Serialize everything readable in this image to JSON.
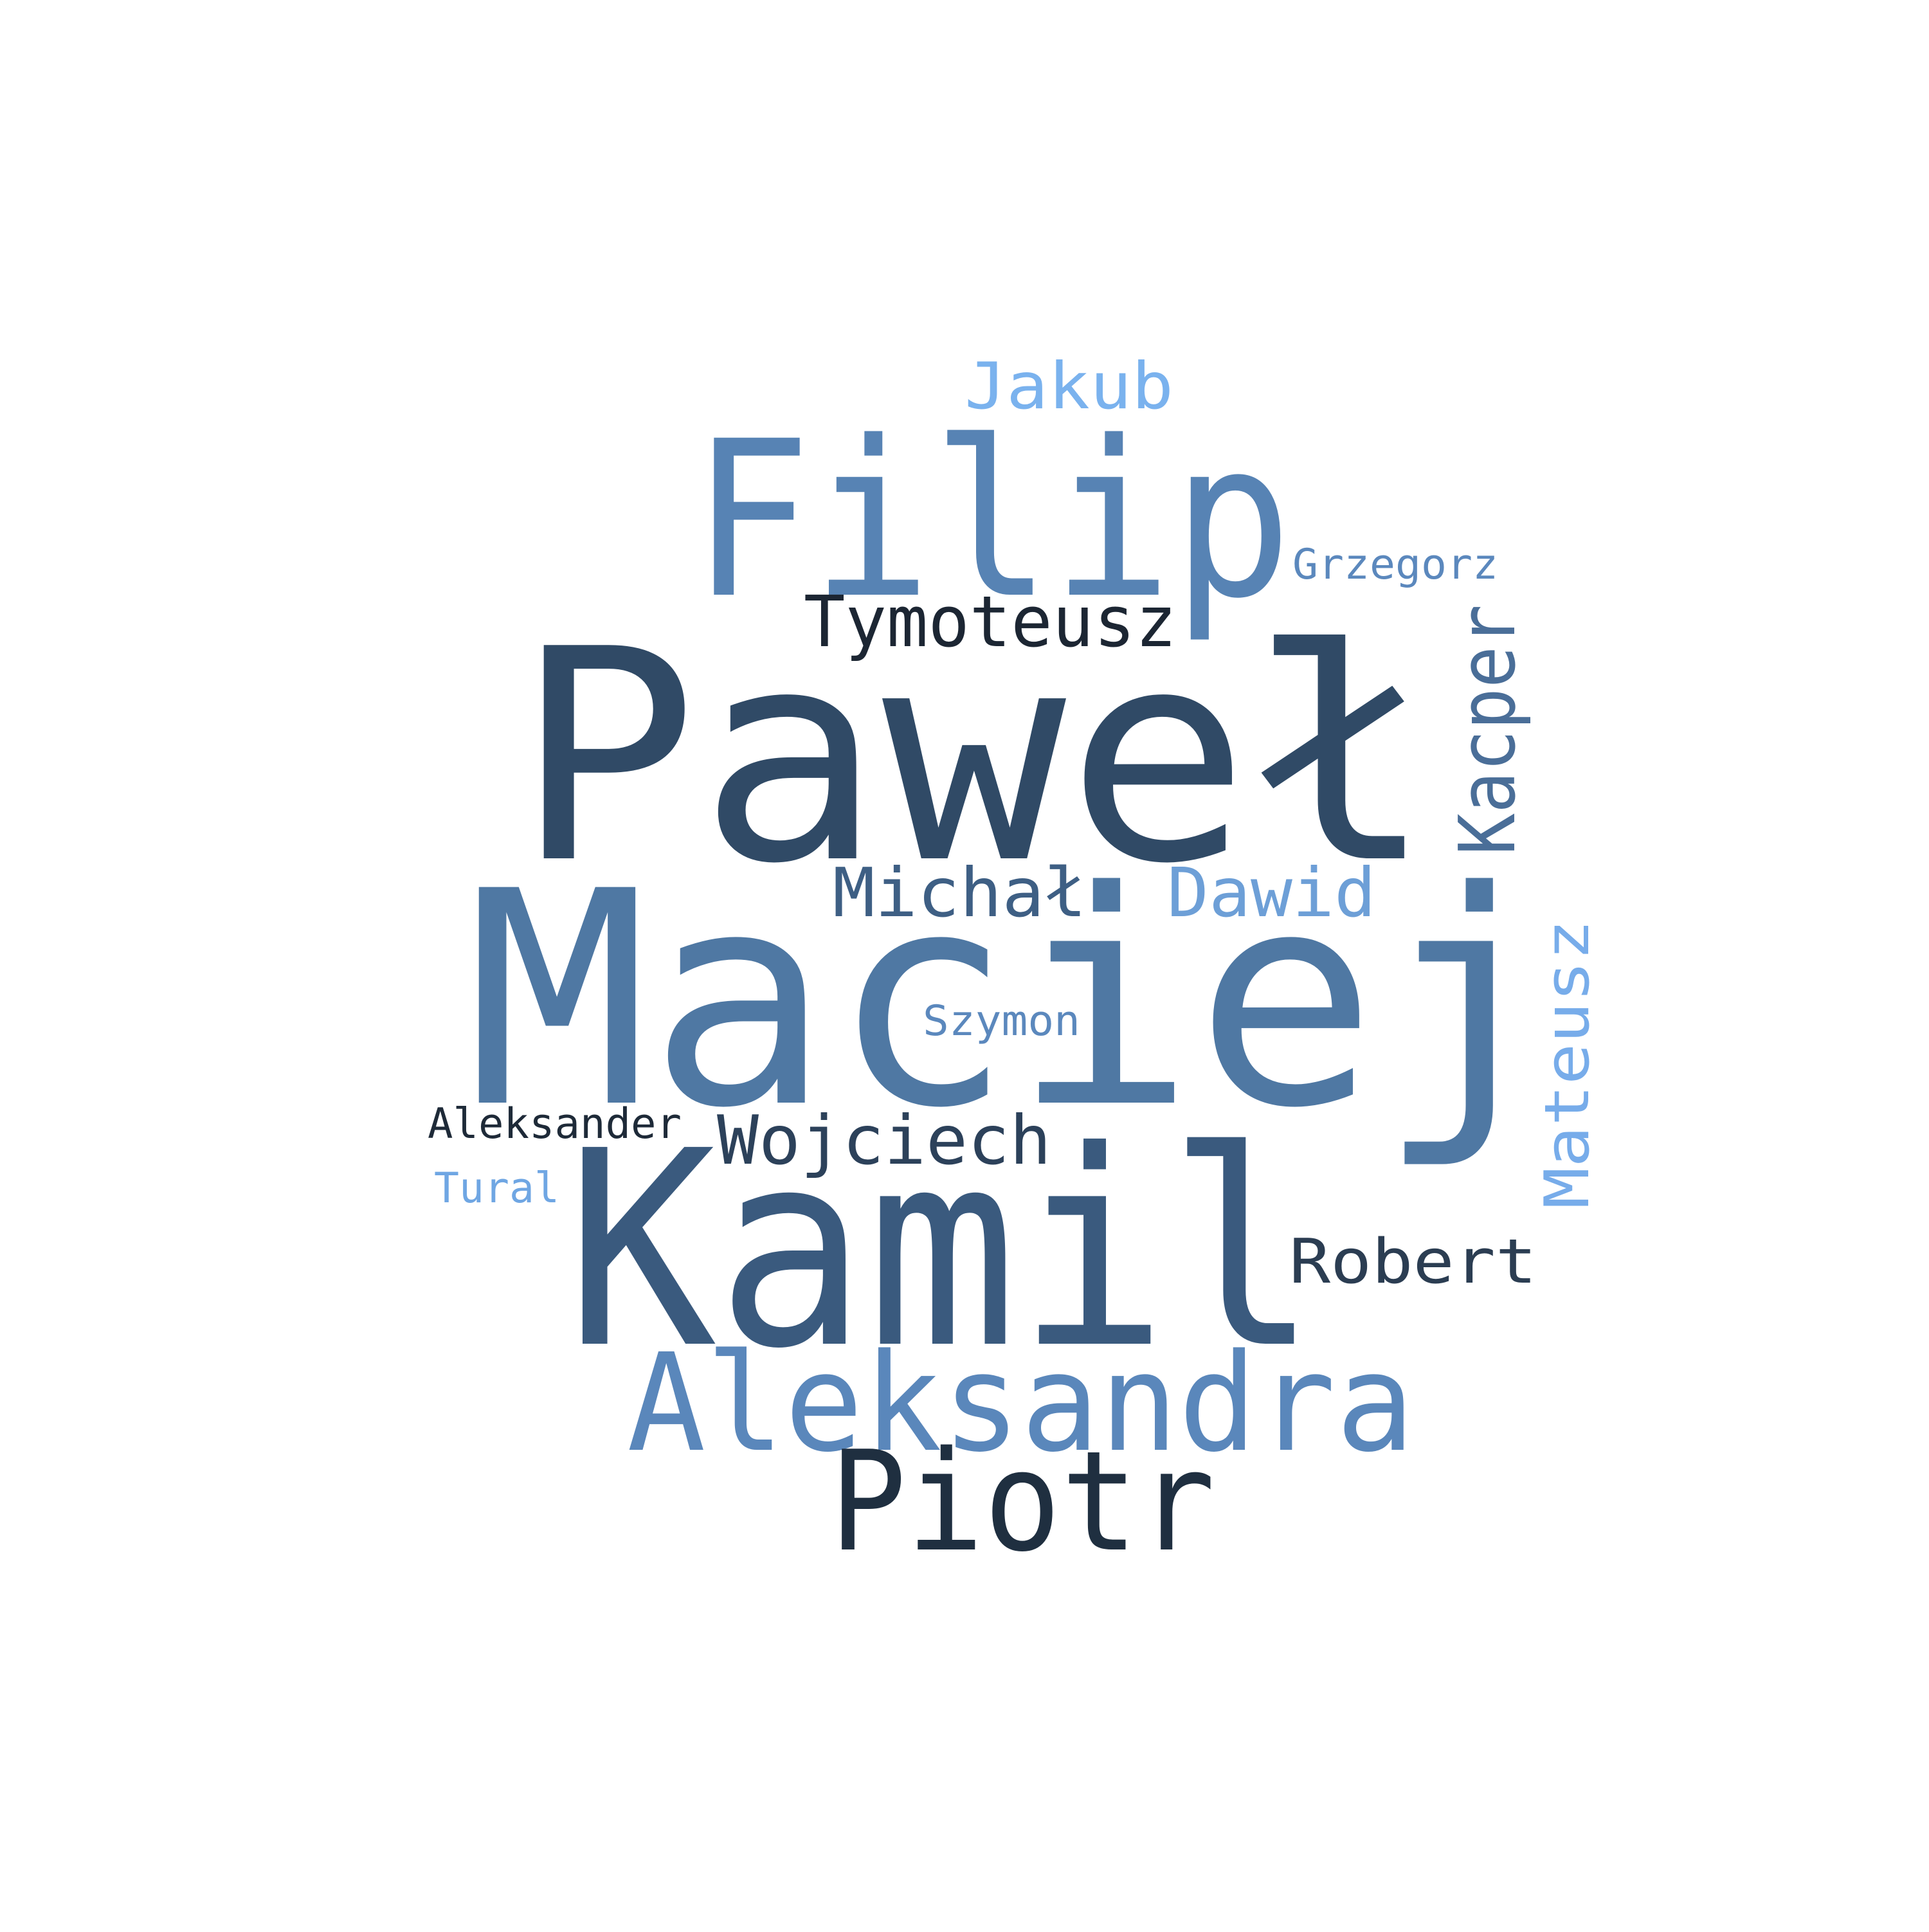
{
  "words": [
    {
      "key": "pawel",
      "text": "Paweł",
      "color": "#304a66"
    },
    {
      "key": "maciej",
      "text": "Maciej",
      "color": "#4f78a3"
    },
    {
      "key": "kamil",
      "text": "Kamil",
      "color": "#3a5a7e"
    },
    {
      "key": "filip",
      "text": "Filip",
      "color": "#5783b4"
    },
    {
      "key": "aleksandra",
      "text": "Aleksandra",
      "color": "#5a87bb"
    },
    {
      "key": "piotr",
      "text": "Piotr",
      "color": "#1f2f40"
    },
    {
      "key": "jakub",
      "text": "Jakub",
      "color": "#7ab2ee"
    },
    {
      "key": "tymoteusz",
      "text": "Tymoteusz",
      "color": "#1c2633"
    },
    {
      "key": "kacper",
      "text": "Kacper",
      "color": "#4a6e98"
    },
    {
      "key": "michal",
      "text": "Michał",
      "color": "#3e5f84"
    },
    {
      "key": "dawid",
      "text": "Dawid",
      "color": "#6d9fd7"
    },
    {
      "key": "mateusz",
      "text": "Mateusz",
      "color": "#77acea"
    },
    {
      "key": "wojciech",
      "text": "Wojciech",
      "color": "#2c415a"
    },
    {
      "key": "robert",
      "text": "Robert",
      "color": "#2b3d52"
    },
    {
      "key": "szymon",
      "text": "Szymon",
      "color": "#5b88bd"
    },
    {
      "key": "grzegorz",
      "text": "Grzegorz",
      "color": "#5b88bd"
    },
    {
      "key": "aleksander",
      "text": "Aleksander",
      "color": "#1e2a38"
    },
    {
      "key": "tural",
      "text": "Tural",
      "color": "#6fa6e3"
    }
  ]
}
